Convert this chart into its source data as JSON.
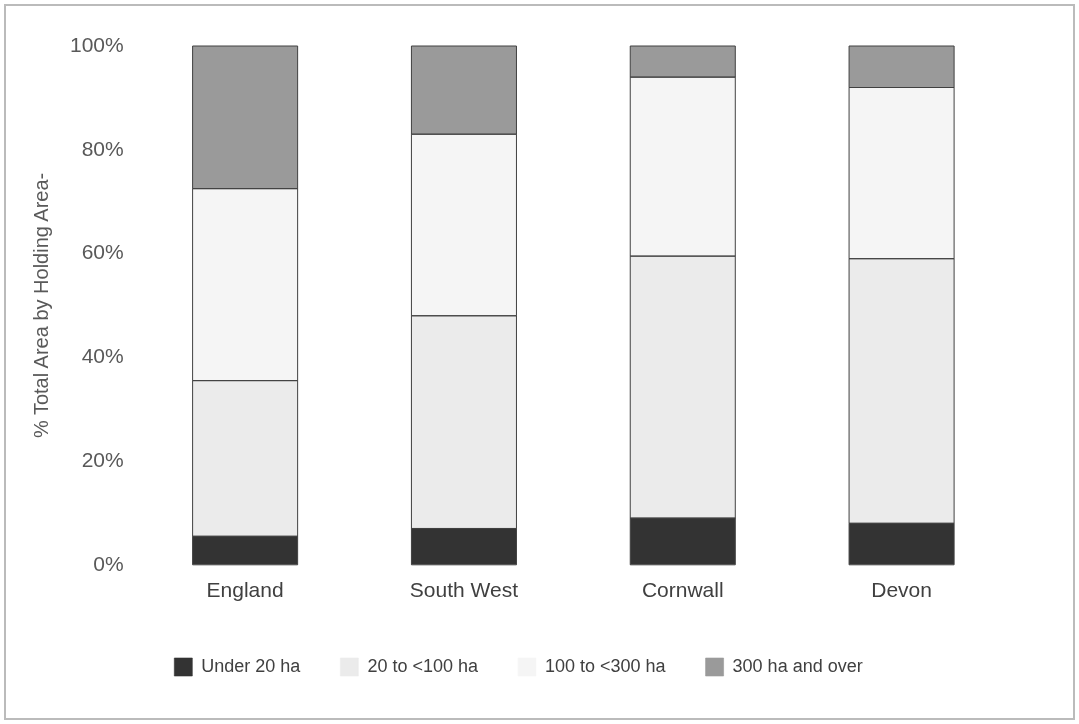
{
  "chart_data": {
    "type": "bar",
    "stacked": true,
    "ylabel": "% Total Area by Holding Area-",
    "categories": [
      "England",
      "South West",
      "Cornwall",
      "Devon"
    ],
    "series": [
      {
        "name": "Under 20 ha",
        "color": "#333333",
        "values": [
          5.5,
          7,
          9,
          8
        ]
      },
      {
        "name": "20 to <100 ha",
        "color": "#ebebeb",
        "values": [
          30,
          41,
          50.5,
          51
        ]
      },
      {
        "name": "100 to <300 ha",
        "color": "#f5f5f5",
        "values": [
          37,
          35,
          34.5,
          33
        ]
      },
      {
        "name": "300 ha and over",
        "color": "#9a9a9a",
        "values": [
          27.5,
          17,
          6,
          8
        ]
      }
    ],
    "ylim": [
      0,
      100
    ],
    "yticks": [
      {
        "value": 0,
        "label": "0%"
      },
      {
        "value": 20,
        "label": "20%"
      },
      {
        "value": 40,
        "label": "40%"
      },
      {
        "value": 60,
        "label": "60%"
      },
      {
        "value": 80,
        "label": "80%"
      },
      {
        "value": 100,
        "label": "100%"
      }
    ],
    "grid": false,
    "legend": "bottom"
  }
}
